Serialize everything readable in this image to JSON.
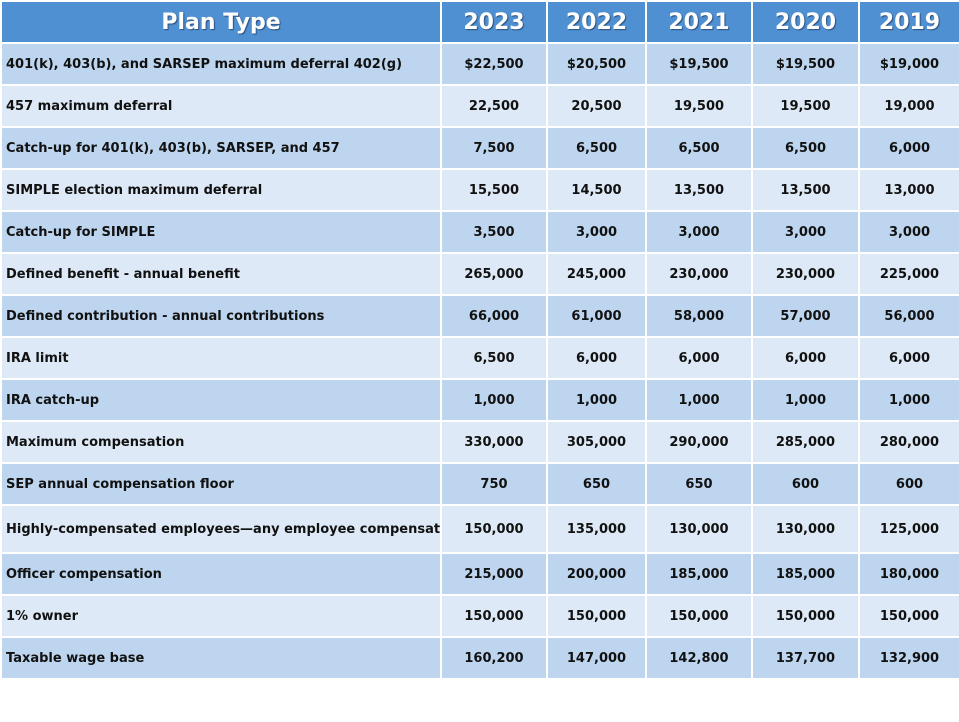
{
  "table": {
    "headers": [
      "Plan Type",
      "2023",
      "2022",
      "2021",
      "2020",
      "2019"
    ],
    "rows": [
      {
        "label": "401(k), 403(b), and SARSEP maximum deferral 402(g)",
        "values": [
          "$22,500",
          "$20,500",
          "$19,500",
          "$19,500",
          "$19,000"
        ]
      },
      {
        "label": "457 maximum deferral",
        "values": [
          "22,500",
          "20,500",
          "19,500",
          "19,500",
          "19,000"
        ]
      },
      {
        "label": "Catch-up for 401(k), 403(b), SARSEP, and 457",
        "values": [
          "7,500",
          "6,500",
          "6,500",
          "6,500",
          "6,000"
        ]
      },
      {
        "label": "SIMPLE election maximum deferral",
        "values": [
          "15,500",
          "14,500",
          "13,500",
          "13,500",
          "13,000"
        ]
      },
      {
        "label": "Catch-up for SIMPLE",
        "values": [
          "3,500",
          "3,000",
          "3,000",
          "3,000",
          "3,000"
        ]
      },
      {
        "label": "Defined benefit - annual benefit",
        "values": [
          "265,000",
          "245,000",
          "230,000",
          "230,000",
          "225,000"
        ]
      },
      {
        "label": "Defined contribution - annual contributions",
        "values": [
          "66,000",
          "61,000",
          "58,000",
          "57,000",
          "56,000"
        ]
      },
      {
        "label": "IRA limit",
        "values": [
          "6,500",
          "6,000",
          "6,000",
          "6,000",
          "6,000"
        ]
      },
      {
        "label": "IRA catch-up",
        "values": [
          "1,000",
          "1,000",
          "1,000",
          "1,000",
          "1,000"
        ]
      },
      {
        "label": "Maximum compensation",
        "values": [
          "330,000",
          "305,000",
          "290,000",
          "285,000",
          "280,000"
        ]
      },
      {
        "label": "SEP annual compensation floor",
        "values": [
          "750",
          "650",
          "650",
          "600",
          "600"
        ]
      },
      {
        "label": "Highly-compensated employees—any employee compensation",
        "values": [
          "150,000",
          "135,000",
          "130,000",
          "130,000",
          "125,000"
        ]
      },
      {
        "label": "Officer compensation",
        "values": [
          "215,000",
          "200,000",
          "185,000",
          "185,000",
          "180,000"
        ]
      },
      {
        "label": "1% owner",
        "values": [
          "150,000",
          "150,000",
          "150,000",
          "150,000",
          "150,000"
        ]
      },
      {
        "label": "Taxable wage base",
        "values": [
          "160,200",
          "147,000",
          "142,800",
          "137,700",
          "132,900"
        ]
      }
    ]
  },
  "colors": {
    "header_bg": "#4f90d2",
    "row_dark": "#bdd5ee",
    "row_light": "#dde9f6"
  }
}
